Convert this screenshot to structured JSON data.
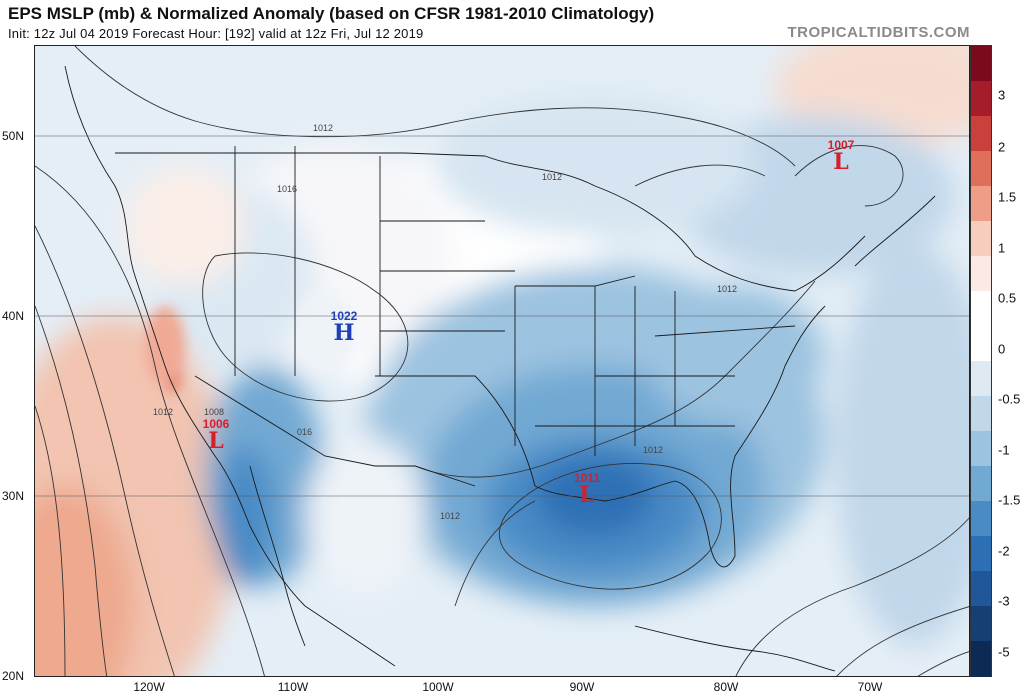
{
  "header": {
    "title": "EPS MSLP (mb) & Normalized Anomaly (based on CFSR 1981-2010 Climatology)",
    "subtitle": "Init: 12z Jul 04 2019   Forecast Hour: [192]   valid at 12z Fri, Jul 12 2019",
    "watermark": "TROPICALTIDBITS.COM"
  },
  "axes": {
    "lat_labels": [
      "50N",
      "40N",
      "30N",
      "20N"
    ],
    "lon_labels": [
      "120W",
      "110W",
      "100W",
      "90W",
      "80W",
      "70W"
    ]
  },
  "colorbar": {
    "labels": [
      "3",
      "2",
      "1.5",
      "1",
      "0.5",
      "0",
      "-0.5",
      "-1",
      "-1.5",
      "-2",
      "-3",
      "-5"
    ],
    "colors": [
      "#7b0a1c",
      "#a51d2a",
      "#c9403c",
      "#df6f5b",
      "#ee9d86",
      "#f7cdbd",
      "#fbeae3",
      "#ffffff",
      "#ffffff",
      "#dfe9f2",
      "#c1d7ea",
      "#9cc3e0",
      "#72a9d3",
      "#4a8bc6",
      "#2d6fb5",
      "#1f5799",
      "#163f74",
      "#0c2a53"
    ]
  },
  "pressure_systems": [
    {
      "id": "low-1007",
      "value": "1007",
      "symbol": "L",
      "color": "#d4202a"
    },
    {
      "id": "high-1022",
      "value": "1022",
      "symbol": "H",
      "color": "#1d3fb8"
    },
    {
      "id": "low-1006",
      "value": "1006",
      "symbol": "L",
      "color": "#d4202a"
    },
    {
      "id": "low-1011",
      "value": "1011",
      "symbol": "L",
      "color": "#d4202a"
    }
  ],
  "isobar_labels": [
    "1012",
    "1016",
    "1012",
    "1012",
    "1012",
    "1008",
    "016",
    "1012",
    "1012"
  ]
}
